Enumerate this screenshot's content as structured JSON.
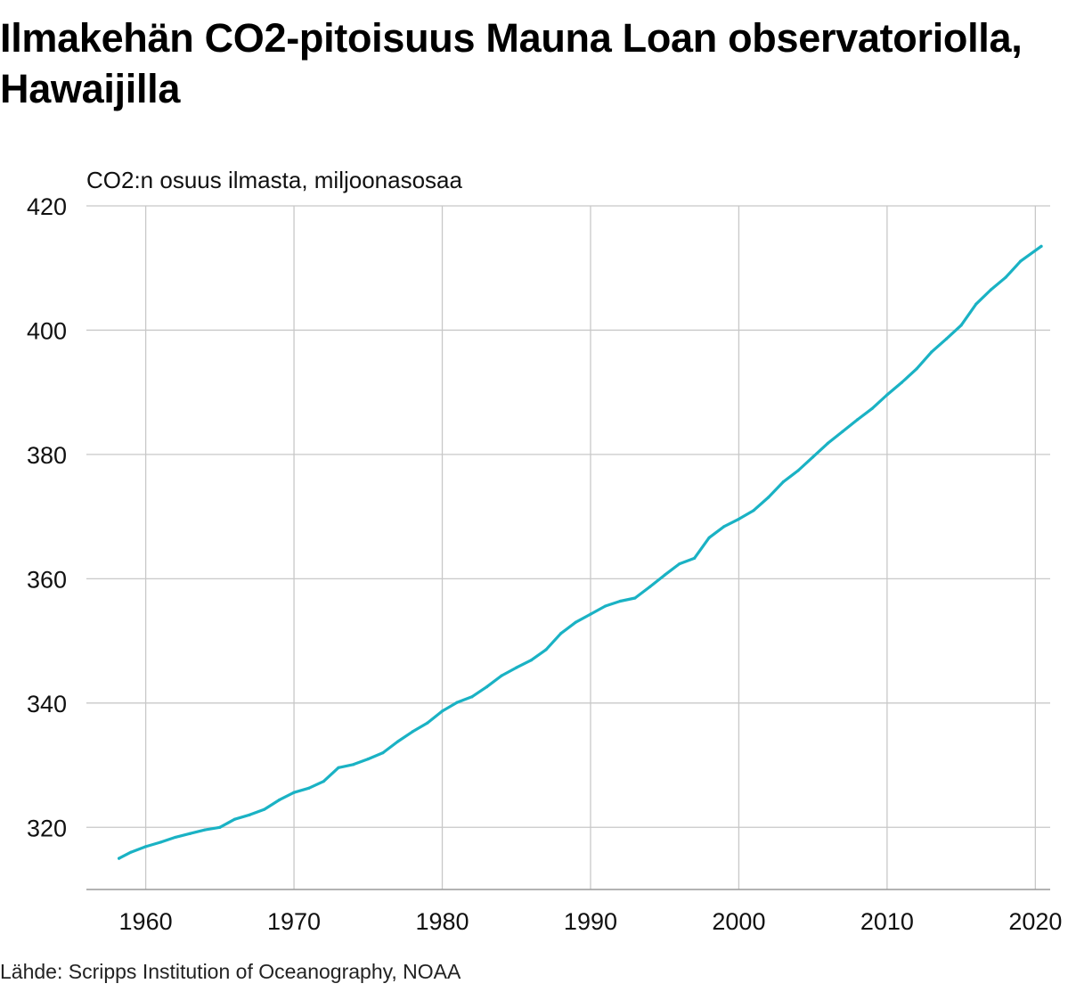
{
  "title": "Ilmakehän CO2-pitoisuus Mauna Loan observatoriolla, Hawaijilla",
  "source": "Lähde: Scripps Institution of Oceanography, NOAA",
  "colors": {
    "line": "#1ab2c4",
    "grid": "#c8c8c8",
    "text": "#111111"
  },
  "chart_data": {
    "type": "line",
    "title": "Ilmakehän CO2-pitoisuus Mauna Loan observatoriolla, Hawaijilla",
    "ylabel": "CO2:n osuus ilmasta, miljoonasosaa",
    "xlabel": "",
    "xlim": [
      1956,
      2021
    ],
    "ylim": [
      310,
      420
    ],
    "xticks": [
      1960,
      1970,
      1980,
      1990,
      2000,
      2010,
      2020
    ],
    "xtick_labels": [
      "1960",
      "1970",
      "1980",
      "1990",
      "2000",
      "2010",
      "2020"
    ],
    "yticks": [
      320,
      340,
      360,
      380,
      400,
      420
    ],
    "ytick_labels": [
      "320",
      "340",
      "360",
      "380",
      "400",
      "420"
    ],
    "grid": true,
    "legend": "none",
    "series": [
      {
        "name": "",
        "x": [
          1958.2,
          1959,
          1960,
          1961,
          1962,
          1963,
          1964,
          1965,
          1966,
          1967,
          1968,
          1969,
          1970,
          1971,
          1972,
          1973,
          1974,
          1975,
          1976,
          1977,
          1978,
          1979,
          1980,
          1981,
          1982,
          1983,
          1984,
          1985,
          1986,
          1987,
          1988,
          1989,
          1990,
          1991,
          1992,
          1993,
          1994,
          1995,
          1996,
          1997,
          1998,
          1999,
          2000,
          2001,
          2002,
          2003,
          2004,
          2005,
          2006,
          2007,
          2008,
          2009,
          2010,
          2011,
          2012,
          2013,
          2014,
          2015,
          2016,
          2017,
          2018,
          2019,
          2020.4
        ],
        "values": [
          315.0,
          316.0,
          316.9,
          317.6,
          318.4,
          319.0,
          319.6,
          320.0,
          321.3,
          322.0,
          322.9,
          324.4,
          325.6,
          326.3,
          327.4,
          329.6,
          330.1,
          331.0,
          332.0,
          333.8,
          335.4,
          336.8,
          338.7,
          340.1,
          341.0,
          342.6,
          344.4,
          345.7,
          346.9,
          348.6,
          351.2,
          353.0,
          354.3,
          355.6,
          356.4,
          356.9,
          358.7,
          360.6,
          362.4,
          363.3,
          366.6,
          368.4,
          369.6,
          371.0,
          373.1,
          375.6,
          377.4,
          379.6,
          381.8,
          383.7,
          385.6,
          387.4,
          389.6,
          391.6,
          393.8,
          396.5,
          398.6,
          400.8,
          404.2,
          406.5,
          408.5,
          411.1,
          413.5
        ]
      }
    ]
  }
}
